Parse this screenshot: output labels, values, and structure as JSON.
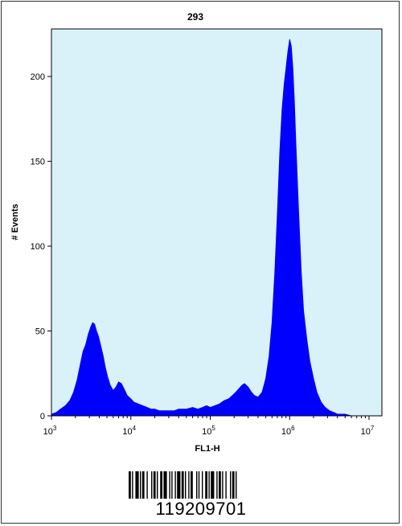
{
  "chart_data": {
    "type": "area",
    "title": "293",
    "xlabel": "FL1-H",
    "ylabel": "# Events",
    "x_scale": "log",
    "xlim": [
      1000,
      10000000
    ],
    "ylim": [
      0,
      228
    ],
    "x_ticks": [
      {
        "value": 1000,
        "base": "10",
        "exp": "3"
      },
      {
        "value": 10000,
        "base": "10",
        "exp": "4"
      },
      {
        "value": 100000,
        "base": "10",
        "exp": "5"
      },
      {
        "value": 1000000,
        "base": "10",
        "exp": "6"
      },
      {
        "value": 10000000,
        "base": "10",
        "exp": "7"
      }
    ],
    "y_ticks": [
      0,
      50,
      100,
      150,
      200
    ],
    "fill_color": "#0000ff",
    "background_color": "#d9f1f9",
    "series": [
      {
        "x": [
          1000,
          1150,
          1300,
          1500,
          1700,
          1900,
          2100,
          2300,
          2500,
          2700,
          2900,
          3100,
          3300,
          3500,
          3700,
          3900,
          4200,
          4500,
          4800,
          5100,
          5500,
          6000,
          6500,
          7000,
          7600,
          8200,
          9000,
          10000,
          11000,
          12500,
          14000,
          16000,
          18000,
          20000,
          23000,
          26000,
          30000,
          35000,
          40000,
          50000,
          60000,
          70000,
          80000,
          90000,
          100000,
          115000,
          130000,
          150000,
          170000,
          190000,
          210000,
          230000,
          250000,
          270000,
          300000,
          330000,
          360000,
          400000,
          450000,
          500000,
          550000,
          600000,
          650000,
          700000,
          750000,
          800000,
          850000,
          900000,
          950000,
          1000000,
          1050000,
          1100000,
          1150000,
          1200000,
          1300000,
          1400000,
          1500000,
          1650000,
          1800000,
          2000000,
          2200000,
          2500000,
          2800000,
          3200000,
          3600000,
          4000000,
          4500000,
          5000000,
          6000000,
          7000000,
          8000000,
          10000000
        ],
        "y": [
          1,
          2,
          4,
          6,
          9,
          14,
          21,
          30,
          38,
          42,
          48,
          52,
          55,
          54,
          50,
          47,
          41,
          35,
          28,
          23,
          18,
          15,
          17,
          20,
          19,
          16,
          12,
          10,
          8,
          7,
          6,
          5,
          4,
          4,
          3,
          3,
          3,
          3,
          4,
          4,
          5,
          4,
          5,
          6,
          5,
          6,
          7,
          9,
          10,
          12,
          14,
          16,
          18,
          19,
          17,
          14,
          12,
          11,
          14,
          22,
          35,
          55,
          85,
          120,
          155,
          180,
          195,
          205,
          215,
          222,
          218,
          205,
          185,
          160,
          120,
          85,
          62,
          45,
          32,
          22,
          14,
          8,
          5,
          3,
          2,
          1,
          1,
          1,
          0,
          0,
          0,
          0
        ]
      }
    ]
  },
  "barcode": {
    "text": "119209701"
  }
}
